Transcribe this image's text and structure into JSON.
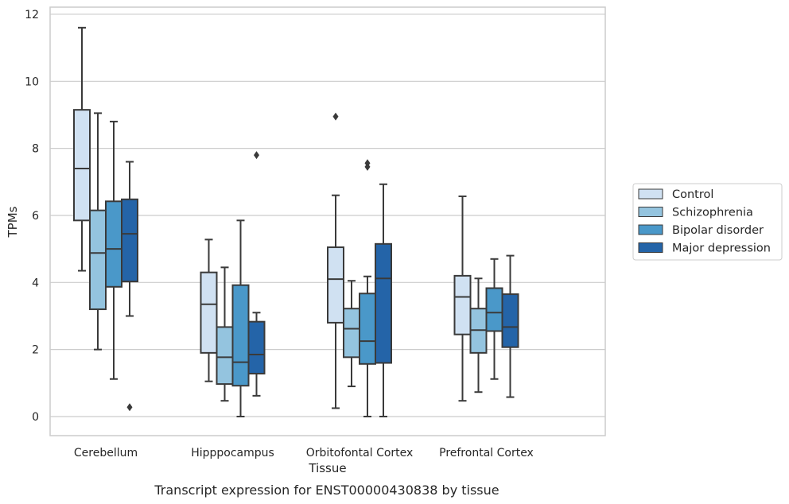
{
  "chart_data": {
    "type": "box",
    "caption": "Transcript expression for ENST00000430838 by tissue",
    "xlabel": "Tissue",
    "ylabel": "TPMs",
    "ylim": [
      -0.55,
      12.2
    ],
    "yticks": [
      0,
      2,
      4,
      6,
      8,
      10,
      12
    ],
    "grid": true,
    "legend_position": "right",
    "categories": [
      "Cerebellum",
      "Hipppocampus",
      "Orbitofontal Cortex",
      "Prefrontal Cortex"
    ],
    "series": [
      {
        "name": "Control",
        "color": "#d0e1f2",
        "boxes": [
          {
            "whislo": 4.35,
            "q1": 5.85,
            "med": 7.4,
            "q3": 9.15,
            "whishi": 11.6,
            "fliers": []
          },
          {
            "whislo": 1.05,
            "q1": 1.9,
            "med": 3.35,
            "q3": 4.3,
            "whishi": 5.28,
            "fliers": []
          },
          {
            "whislo": 0.25,
            "q1": 2.8,
            "med": 4.1,
            "q3": 5.05,
            "whishi": 6.6,
            "fliers": [
              8.95
            ]
          },
          {
            "whislo": 0.47,
            "q1": 2.45,
            "med": 3.57,
            "q3": 4.2,
            "whishi": 6.57,
            "fliers": []
          }
        ]
      },
      {
        "name": "Schizophrenia",
        "color": "#94c4df",
        "boxes": [
          {
            "whislo": 2.0,
            "q1": 3.2,
            "med": 4.88,
            "q3": 6.15,
            "whishi": 9.05,
            "fliers": []
          },
          {
            "whislo": 0.47,
            "q1": 0.97,
            "med": 1.77,
            "q3": 2.67,
            "whishi": 4.45,
            "fliers": []
          },
          {
            "whislo": 0.9,
            "q1": 1.77,
            "med": 2.62,
            "q3": 3.22,
            "whishi": 4.05,
            "fliers": []
          },
          {
            "whislo": 0.73,
            "q1": 1.9,
            "med": 2.58,
            "q3": 3.22,
            "whishi": 4.12,
            "fliers": []
          }
        ]
      },
      {
        "name": "Bipolar disorder",
        "color": "#4a98c9",
        "boxes": [
          {
            "whislo": 1.12,
            "q1": 3.87,
            "med": 5.0,
            "q3": 6.42,
            "whishi": 8.8,
            "fliers": []
          },
          {
            "whislo": 0.0,
            "q1": 0.92,
            "med": 1.62,
            "q3": 3.92,
            "whishi": 5.85,
            "fliers": []
          },
          {
            "whislo": 0.0,
            "q1": 1.57,
            "med": 2.25,
            "q3": 3.67,
            "whishi": 4.18,
            "fliers": [
              7.45,
              7.56
            ]
          },
          {
            "whislo": 1.12,
            "q1": 2.55,
            "med": 3.1,
            "q3": 3.83,
            "whishi": 4.7,
            "fliers": []
          }
        ]
      },
      {
        "name": "Major depression",
        "color": "#2464a8",
        "boxes": [
          {
            "whislo": 3.0,
            "q1": 4.03,
            "med": 5.45,
            "q3": 6.48,
            "whishi": 7.6,
            "fliers": [
              0.28
            ]
          },
          {
            "whislo": 0.62,
            "q1": 1.28,
            "med": 1.85,
            "q3": 2.83,
            "whishi": 3.1,
            "fliers": [
              7.8
            ]
          },
          {
            "whislo": 0.0,
            "q1": 1.6,
            "med": 4.12,
            "q3": 5.15,
            "whishi": 6.93,
            "fliers": []
          },
          {
            "whislo": 0.58,
            "q1": 2.07,
            "med": 2.67,
            "q3": 3.65,
            "whishi": 4.8,
            "fliers": []
          }
        ]
      }
    ]
  }
}
